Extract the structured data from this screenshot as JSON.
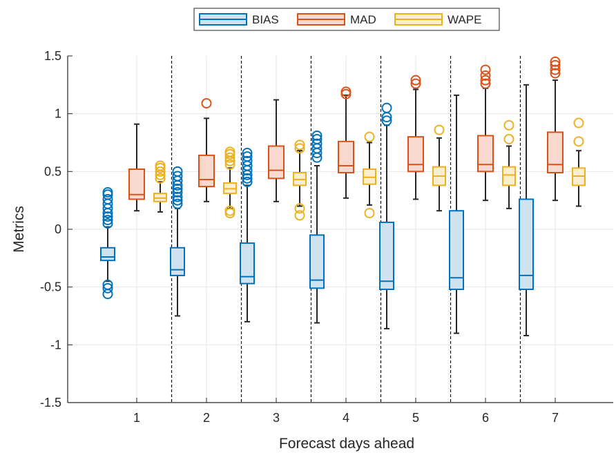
{
  "chart_data": {
    "type": "boxplot",
    "xlabel": "Forecast days ahead",
    "ylabel": "Metrics",
    "categories": [
      "1",
      "2",
      "3",
      "4",
      "5",
      "6",
      "7"
    ],
    "ylim": [
      -1.5,
      1.5
    ],
    "yticks": [
      "-1.5",
      "-1",
      "-0.5",
      "0",
      "0.5",
      "1",
      "1.5"
    ],
    "grid": true,
    "legend_position": "top",
    "series": [
      {
        "name": "BIAS",
        "color": "#0072bd",
        "fill": "#cfe2f0",
        "boxes": [
          {
            "whisker_low": -0.45,
            "q1": -0.27,
            "median": -0.24,
            "q3": -0.16,
            "whisker_high": 0.02,
            "outliers": [
              0.05,
              0.08,
              0.11,
              0.14,
              0.18,
              0.22,
              0.26,
              0.3,
              0.32,
              -0.48,
              -0.51,
              -0.56
            ]
          },
          {
            "whisker_low": -0.75,
            "q1": -0.4,
            "median": -0.35,
            "q3": -0.16,
            "whisker_high": 0.18,
            "outliers": [
              0.22,
              0.25,
              0.28,
              0.32,
              0.35,
              0.38,
              0.42,
              0.46,
              0.5
            ]
          },
          {
            "whisker_low": -0.8,
            "q1": -0.47,
            "median": -0.41,
            "q3": -0.12,
            "whisker_high": 0.38,
            "outliers": [
              0.41,
              0.44,
              0.47,
              0.51,
              0.55,
              0.59,
              0.63,
              0.66
            ]
          },
          {
            "whisker_low": -0.81,
            "q1": -0.51,
            "median": -0.44,
            "q3": -0.05,
            "whisker_high": 0.55,
            "outliers": [
              0.62,
              0.66,
              0.7,
              0.74,
              0.78,
              0.81
            ]
          },
          {
            "whisker_low": -0.86,
            "q1": -0.52,
            "median": -0.45,
            "q3": 0.06,
            "whisker_high": 0.9,
            "outliers": [
              0.94,
              0.97,
              1.05
            ]
          },
          {
            "whisker_low": -0.9,
            "q1": -0.52,
            "median": -0.42,
            "q3": 0.16,
            "whisker_high": 1.16,
            "outliers": []
          },
          {
            "whisker_low": -0.92,
            "q1": -0.52,
            "median": -0.4,
            "q3": 0.26,
            "whisker_high": 1.25,
            "outliers": []
          }
        ]
      },
      {
        "name": "MAD",
        "color": "#d95319",
        "fill": "#f7d9cf",
        "boxes": [
          {
            "whisker_low": 0.16,
            "q1": 0.26,
            "median": 0.3,
            "q3": 0.52,
            "whisker_high": 0.91,
            "outliers": []
          },
          {
            "whisker_low": 0.24,
            "q1": 0.37,
            "median": 0.43,
            "q3": 0.64,
            "whisker_high": 0.96,
            "outliers": [
              1.09
            ]
          },
          {
            "whisker_low": 0.24,
            "q1": 0.44,
            "median": 0.51,
            "q3": 0.72,
            "whisker_high": 1.12,
            "outliers": []
          },
          {
            "whisker_low": 0.27,
            "q1": 0.49,
            "median": 0.55,
            "q3": 0.76,
            "whisker_high": 1.16,
            "outliers": [
              1.17,
              1.19
            ]
          },
          {
            "whisker_low": 0.26,
            "q1": 0.5,
            "median": 0.56,
            "q3": 0.8,
            "whisker_high": 1.21,
            "outliers": [
              1.26,
              1.29
            ]
          },
          {
            "whisker_low": 0.25,
            "q1": 0.5,
            "median": 0.56,
            "q3": 0.81,
            "whisker_high": 1.22,
            "outliers": [
              1.26,
              1.29,
              1.33,
              1.38
            ]
          },
          {
            "whisker_low": 0.25,
            "q1": 0.49,
            "median": 0.56,
            "q3": 0.84,
            "whisker_high": 1.29,
            "outliers": [
              1.35,
              1.38,
              1.42,
              1.45
            ]
          }
        ]
      },
      {
        "name": "WAPE",
        "color": "#edb120",
        "fill": "#fbefcf",
        "boxes": [
          {
            "whisker_low": 0.15,
            "q1": 0.24,
            "median": 0.27,
            "q3": 0.31,
            "whisker_high": 0.41,
            "outliers": [
              0.44,
              0.47,
              0.5,
              0.53,
              0.55
            ]
          },
          {
            "whisker_low": 0.18,
            "q1": 0.31,
            "median": 0.35,
            "q3": 0.4,
            "whisker_high": 0.53,
            "outliers": [
              0.14,
              0.16,
              0.56,
              0.59,
              0.62,
              0.65,
              0.67
            ]
          },
          {
            "whisker_low": 0.2,
            "q1": 0.38,
            "median": 0.43,
            "q3": 0.49,
            "whisker_high": 0.68,
            "outliers": [
              0.12,
              0.18,
              0.7,
              0.73
            ]
          },
          {
            "whisker_low": 0.21,
            "q1": 0.39,
            "median": 0.45,
            "q3": 0.52,
            "whisker_high": 0.75,
            "outliers": [
              0.14,
              0.8
            ]
          },
          {
            "whisker_low": 0.16,
            "q1": 0.38,
            "median": 0.46,
            "q3": 0.54,
            "whisker_high": 0.79,
            "outliers": [
              0.86
            ]
          },
          {
            "whisker_low": 0.18,
            "q1": 0.38,
            "median": 0.47,
            "q3": 0.54,
            "whisker_high": 0.72,
            "outliers": [
              0.78,
              0.9
            ]
          },
          {
            "whisker_low": 0.2,
            "q1": 0.38,
            "median": 0.46,
            "q3": 0.53,
            "whisker_high": 0.68,
            "outliers": [
              0.76,
              0.92
            ]
          }
        ]
      }
    ]
  }
}
